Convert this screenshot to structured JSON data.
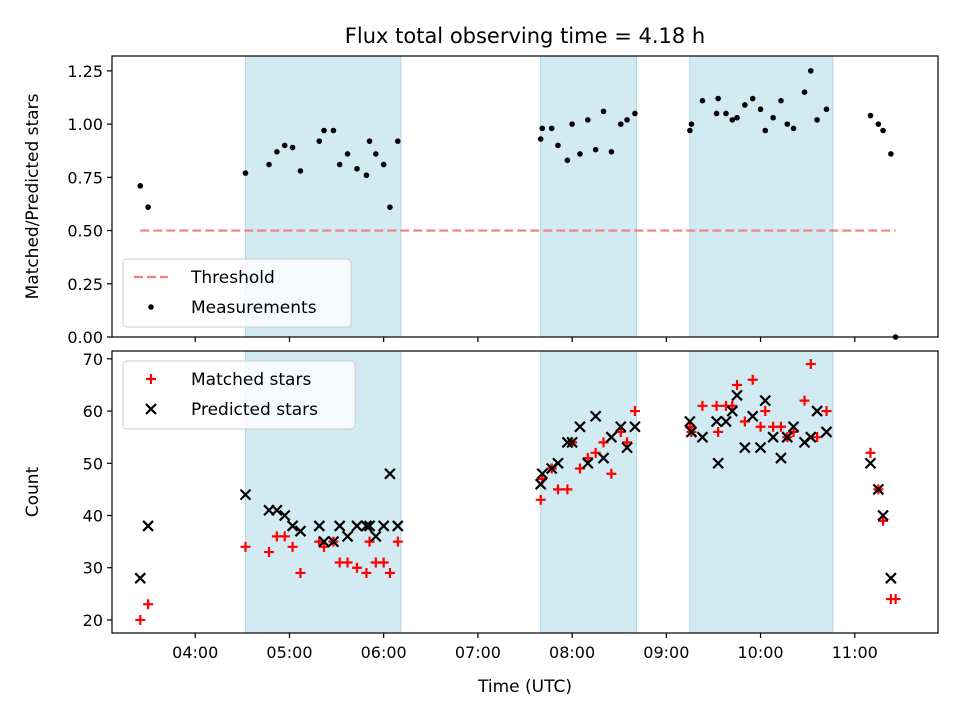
{
  "figure": {
    "title": "Flux total observing time = 4.18 h",
    "shaded_color": "#add8e6"
  },
  "chart_data": [
    {
      "type": "scatter",
      "ylabel": "Matched/Predicted stars",
      "xlim": [
        "03:07",
        "11:53"
      ],
      "ylim": [
        0,
        1.32
      ],
      "yticks": [
        "0.00",
        "0.25",
        "0.50",
        "0.75",
        "1.00",
        "1.25"
      ],
      "xticks": [
        "04:00",
        "05:00",
        "06:00",
        "07:00",
        "08:00",
        "09:00",
        "10:00",
        "11:00"
      ],
      "xtick_labels_visible": false,
      "shaded_intervals": [
        [
          "04:32",
          "06:11"
        ],
        [
          "07:40",
          "08:41"
        ],
        [
          "09:15",
          "10:46"
        ]
      ],
      "threshold": {
        "name": "Threshold",
        "value": 0.5,
        "x_range": [
          "03:25",
          "11:26"
        ],
        "color": "#f08080",
        "style": "dashed"
      },
      "legend": {
        "position": "bottom-left",
        "entries": [
          {
            "label": "Threshold",
            "marker": "dash",
            "color": "#f08080"
          },
          {
            "label": "Measurements",
            "marker": "dot",
            "color": "#000000"
          }
        ]
      },
      "series": [
        {
          "name": "Measurements",
          "color": "#000000",
          "points": [
            [
              "03:25",
              0.71
            ],
            [
              "03:30",
              0.61
            ],
            [
              "04:32",
              0.77
            ],
            [
              "04:47",
              0.81
            ],
            [
              "04:52",
              0.87
            ],
            [
              "04:57",
              0.9
            ],
            [
              "05:02",
              0.89
            ],
            [
              "05:07",
              0.78
            ],
            [
              "05:19",
              0.92
            ],
            [
              "05:22",
              0.97
            ],
            [
              "05:28",
              0.97
            ],
            [
              "05:32",
              0.81
            ],
            [
              "05:37",
              0.86
            ],
            [
              "05:43",
              0.79
            ],
            [
              "05:49",
              0.76
            ],
            [
              "05:51",
              0.92
            ],
            [
              "05:55",
              0.86
            ],
            [
              "06:00",
              0.81
            ],
            [
              "06:04",
              0.61
            ],
            [
              "06:09",
              0.92
            ],
            [
              "07:40",
              0.93
            ],
            [
              "07:41",
              0.98
            ],
            [
              "07:47",
              0.98
            ],
            [
              "07:51",
              0.9
            ],
            [
              "07:57",
              0.83
            ],
            [
              "08:00",
              1.0
            ],
            [
              "08:05",
              0.86
            ],
            [
              "08:10",
              1.02
            ],
            [
              "08:15",
              0.88
            ],
            [
              "08:20",
              1.06
            ],
            [
              "08:25",
              0.87
            ],
            [
              "08:31",
              1.0
            ],
            [
              "08:35",
              1.02
            ],
            [
              "08:40",
              1.05
            ],
            [
              "09:15",
              0.97
            ],
            [
              "09:16",
              1.0
            ],
            [
              "09:23",
              1.11
            ],
            [
              "09:32",
              1.05
            ],
            [
              "09:33",
              1.12
            ],
            [
              "09:38",
              1.05
            ],
            [
              "09:42",
              1.02
            ],
            [
              "09:45",
              1.03
            ],
            [
              "09:50",
              1.09
            ],
            [
              "09:55",
              1.12
            ],
            [
              "10:00",
              1.07
            ],
            [
              "10:03",
              0.97
            ],
            [
              "10:08",
              1.03
            ],
            [
              "10:13",
              1.11
            ],
            [
              "10:17",
              1.0
            ],
            [
              "10:21",
              0.98
            ],
            [
              "10:28",
              1.15
            ],
            [
              "10:32",
              1.25
            ],
            [
              "10:36",
              1.02
            ],
            [
              "10:42",
              1.07
            ],
            [
              "11:10",
              1.04
            ],
            [
              "11:15",
              1.0
            ],
            [
              "11:18",
              0.97
            ],
            [
              "11:23",
              0.86
            ],
            [
              "11:26",
              0.0
            ]
          ]
        }
      ]
    },
    {
      "type": "scatter",
      "xlabel": "Time (UTC)",
      "ylabel": "Count",
      "xlim": [
        "03:07",
        "11:53"
      ],
      "ylim": [
        17.5,
        71.5
      ],
      "yticks": [
        "20",
        "30",
        "40",
        "50",
        "60",
        "70"
      ],
      "xticks": [
        "04:00",
        "05:00",
        "06:00",
        "07:00",
        "08:00",
        "09:00",
        "10:00",
        "11:00"
      ],
      "shaded_intervals": [
        [
          "04:32",
          "06:11"
        ],
        [
          "07:40",
          "08:41"
        ],
        [
          "09:15",
          "10:46"
        ]
      ],
      "legend": {
        "position": "top-left",
        "entries": [
          {
            "label": "Matched stars",
            "marker": "plus",
            "color": "#ff0000"
          },
          {
            "label": "Predicted stars",
            "marker": "x",
            "color": "#000000"
          }
        ]
      },
      "series": [
        {
          "name": "Matched stars",
          "color": "#ff0000",
          "marker": "plus",
          "points": [
            [
              "03:25",
              20
            ],
            [
              "03:30",
              23
            ],
            [
              "04:32",
              34
            ],
            [
              "04:47",
              33
            ],
            [
              "04:52",
              36
            ],
            [
              "04:57",
              36
            ],
            [
              "05:02",
              34
            ],
            [
              "05:07",
              29
            ],
            [
              "05:19",
              35
            ],
            [
              "05:22",
              34
            ],
            [
              "05:28",
              35
            ],
            [
              "05:32",
              31
            ],
            [
              "05:37",
              31
            ],
            [
              "05:43",
              30
            ],
            [
              "05:49",
              29
            ],
            [
              "05:51",
              35
            ],
            [
              "05:55",
              31
            ],
            [
              "06:00",
              31
            ],
            [
              "06:04",
              29
            ],
            [
              "06:09",
              35
            ],
            [
              "07:40",
              43
            ],
            [
              "07:41",
              47
            ],
            [
              "07:47",
              49
            ],
            [
              "07:51",
              45
            ],
            [
              "07:57",
              45
            ],
            [
              "08:00",
              54
            ],
            [
              "08:05",
              49
            ],
            [
              "08:10",
              51
            ],
            [
              "08:15",
              52
            ],
            [
              "08:20",
              54
            ],
            [
              "08:25",
              48
            ],
            [
              "08:31",
              56
            ],
            [
              "08:35",
              54
            ],
            [
              "08:40",
              60
            ],
            [
              "09:15",
              57
            ],
            [
              "09:16",
              56
            ],
            [
              "09:23",
              61
            ],
            [
              "09:32",
              61
            ],
            [
              "09:33",
              56
            ],
            [
              "09:38",
              61
            ],
            [
              "09:42",
              61
            ],
            [
              "09:45",
              65
            ],
            [
              "09:50",
              58
            ],
            [
              "09:55",
              66
            ],
            [
              "10:00",
              57
            ],
            [
              "10:03",
              60
            ],
            [
              "10:08",
              57
            ],
            [
              "10:13",
              57
            ],
            [
              "10:17",
              55
            ],
            [
              "10:21",
              56
            ],
            [
              "10:28",
              62
            ],
            [
              "10:32",
              69
            ],
            [
              "10:36",
              55
            ],
            [
              "10:42",
              60
            ],
            [
              "11:10",
              52
            ],
            [
              "11:15",
              45
            ],
            [
              "11:18",
              39
            ],
            [
              "11:23",
              24
            ],
            [
              "11:26",
              24
            ]
          ]
        },
        {
          "name": "Predicted stars",
          "color": "#000000",
          "marker": "x",
          "points": [
            [
              "03:25",
              28
            ],
            [
              "03:30",
              38
            ],
            [
              "04:32",
              44
            ],
            [
              "04:47",
              41
            ],
            [
              "04:52",
              41
            ],
            [
              "04:57",
              40
            ],
            [
              "05:02",
              38
            ],
            [
              "05:07",
              37
            ],
            [
              "05:19",
              38
            ],
            [
              "05:22",
              35
            ],
            [
              "05:28",
              35
            ],
            [
              "05:32",
              38
            ],
            [
              "05:37",
              36
            ],
            [
              "05:43",
              38
            ],
            [
              "05:49",
              38
            ],
            [
              "05:51",
              38
            ],
            [
              "05:55",
              36
            ],
            [
              "06:00",
              38
            ],
            [
              "06:04",
              48
            ],
            [
              "06:09",
              38
            ],
            [
              "07:40",
              46
            ],
            [
              "07:41",
              48
            ],
            [
              "07:47",
              49
            ],
            [
              "07:51",
              50
            ],
            [
              "07:57",
              54
            ],
            [
              "08:00",
              54
            ],
            [
              "08:05",
              57
            ],
            [
              "08:10",
              50
            ],
            [
              "08:15",
              59
            ],
            [
              "08:20",
              51
            ],
            [
              "08:25",
              55
            ],
            [
              "08:31",
              57
            ],
            [
              "08:35",
              53
            ],
            [
              "08:40",
              57
            ],
            [
              "09:15",
              58
            ],
            [
              "09:16",
              56
            ],
            [
              "09:23",
              55
            ],
            [
              "09:32",
              58
            ],
            [
              "09:33",
              50
            ],
            [
              "09:38",
              58
            ],
            [
              "09:42",
              60
            ],
            [
              "09:45",
              63
            ],
            [
              "09:50",
              53
            ],
            [
              "09:55",
              59
            ],
            [
              "10:00",
              53
            ],
            [
              "10:03",
              62
            ],
            [
              "10:08",
              55
            ],
            [
              "10:13",
              51
            ],
            [
              "10:17",
              55
            ],
            [
              "10:21",
              57
            ],
            [
              "10:28",
              54
            ],
            [
              "10:32",
              55
            ],
            [
              "10:36",
              60
            ],
            [
              "10:42",
              56
            ],
            [
              "11:10",
              50
            ],
            [
              "11:15",
              45
            ],
            [
              "11:18",
              40
            ],
            [
              "11:23",
              28
            ]
          ]
        }
      ]
    }
  ]
}
